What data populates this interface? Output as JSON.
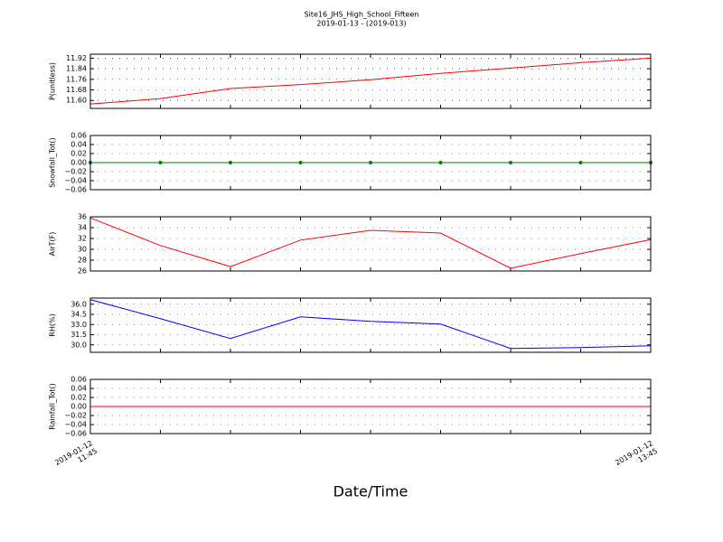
{
  "title": "Site16_JHS_High_School_Fifteen",
  "subtitle": "2019-01-13 - (2019-013)",
  "xlabel": "Date/Time",
  "categories": [
    "2019-01-12\n11:45",
    null,
    null,
    null,
    null,
    null,
    null,
    null,
    "2019-01-12\n13:45"
  ],
  "chart_data": [
    {
      "type": "line",
      "ylabel": "P(unitless)",
      "color": "#ff0000",
      "grid": true,
      "values": [
        11.573,
        11.614,
        11.69,
        11.72,
        11.757,
        11.805,
        11.845,
        11.886,
        11.92
      ],
      "ylim": [
        11.54,
        11.95
      ],
      "yticks": [
        {
          "value": 11.6,
          "label": "11.60"
        },
        {
          "value": 11.68,
          "label": "11.68"
        },
        {
          "value": 11.76,
          "label": "11.76"
        },
        {
          "value": 11.84,
          "label": "11.84"
        },
        {
          "value": 11.92,
          "label": "11.92"
        }
      ]
    },
    {
      "type": "line",
      "ylabel": "Snowfall_Tot()",
      "color": "#008000",
      "grid": true,
      "markers": true,
      "values": [
        0,
        0,
        0,
        0,
        0,
        0,
        0,
        0,
        0
      ],
      "ylim": [
        -0.06,
        0.06
      ],
      "yticks": [
        {
          "value": -0.06,
          "label": "−0.06"
        },
        {
          "value": -0.04,
          "label": "−0.04"
        },
        {
          "value": -0.02,
          "label": "−0.02"
        },
        {
          "value": 0,
          "label": "0.00"
        },
        {
          "value": 0.02,
          "label": "0.02"
        },
        {
          "value": 0.04,
          "label": "0.04"
        },
        {
          "value": 0.06,
          "label": "0.06"
        }
      ]
    },
    {
      "type": "line",
      "ylabel": "AirT(F)",
      "color": "#ff0000",
      "grid": true,
      "values": [
        35.8,
        30.7,
        26.8,
        31.7,
        33.5,
        33.0,
        26.5,
        29.2,
        31.8
      ],
      "ylim": [
        26,
        36
      ],
      "yticks": [
        26,
        28,
        30,
        32,
        34,
        36
      ]
    },
    {
      "type": "line",
      "ylabel": "RH(%)",
      "color": "#0000ff",
      "grid": true,
      "values": [
        36.67,
        33.87,
        30.93,
        34.13,
        33.47,
        33.07,
        29.47,
        29.6,
        29.87
      ],
      "ylim": [
        28.9,
        36.9
      ],
      "yticks": [
        {
          "value": 30,
          "label": "30.0"
        },
        {
          "value": 31.5,
          "label": "31.5"
        },
        {
          "value": 33,
          "label": "33.0"
        },
        {
          "value": 34.5,
          "label": "34.5"
        },
        {
          "value": 36,
          "label": "36.0"
        }
      ]
    },
    {
      "type": "line",
      "ylabel": "Rainfall_Tot()",
      "color": "#ff0000",
      "grid": true,
      "values": [
        0,
        0,
        0,
        0,
        0,
        0,
        0,
        0,
        0
      ],
      "ylim": [
        -0.06,
        0.06
      ],
      "yticks": [
        {
          "value": -0.06,
          "label": "−0.06"
        },
        {
          "value": -0.04,
          "label": "−0.04"
        },
        {
          "value": -0.02,
          "label": "−0.02"
        },
        {
          "value": 0,
          "label": "0.00"
        },
        {
          "value": 0.02,
          "label": "0.02"
        },
        {
          "value": 0.04,
          "label": "0.04"
        },
        {
          "value": 0.06,
          "label": "0.06"
        }
      ]
    }
  ]
}
